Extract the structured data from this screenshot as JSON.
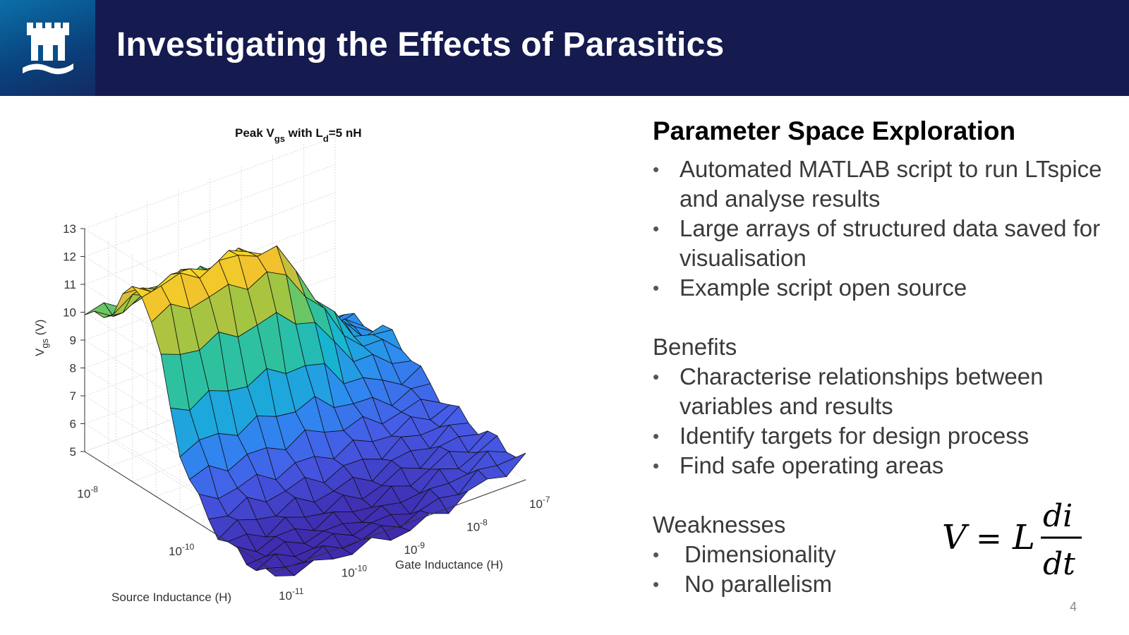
{
  "header": {
    "title": "Investigating the Effects of Parasitics"
  },
  "chart_data": {
    "type": "surface",
    "title": "Peak V",
    "title_sub1": "gs",
    "title_mid": " with L",
    "title_sub2": "d",
    "title_end": "=5 nH",
    "zlabel_main": "V",
    "zlabel_sub": "gs",
    "zlabel_unit": " (V)",
    "xlabel": "Gate Inductance (H)",
    "ylabel": "Source Inductance (H)",
    "zlim": [
      5,
      13
    ],
    "z_ticks": [
      "5",
      "6",
      "7",
      "8",
      "9",
      "10",
      "11",
      "12",
      "13"
    ],
    "x_ticks": [
      {
        "base": "10",
        "exp": "-11"
      },
      {
        "base": "10",
        "exp": "-10"
      },
      {
        "base": "10",
        "exp": "-9"
      },
      {
        "base": "10",
        "exp": "-8"
      },
      {
        "base": "10",
        "exp": "-7"
      }
    ],
    "y_ticks": [
      {
        "base": "10",
        "exp": "-8"
      },
      {
        "base": "10",
        "exp": "-10"
      }
    ],
    "x_log_range": [
      -11,
      -7
    ],
    "y_log_range": [
      -11,
      -7
    ],
    "grid": true,
    "colormap": "parula",
    "surface_levels_by_row": [
      9.9,
      10.0,
      10.3,
      10.8,
      11.4,
      11.8,
      12.0,
      11.3,
      10.0,
      8.4,
      7.2,
      6.4,
      5.8,
      5.4,
      5.1,
      4.9,
      4.8,
      4.7,
      4.7,
      4.7,
      4.7
    ],
    "surface_levels_by_col": [
      1.0,
      1.0,
      1.0,
      1.0,
      1.0,
      1.0,
      1.0,
      0.95,
      0.82,
      0.62,
      0.45,
      0.33,
      0.25,
      0.2
    ]
  },
  "right": {
    "section1_title": "Parameter Space Exploration",
    "bullets1": [
      "Automated MATLAB script to run LTspice and analyse results",
      "Large arrays of structured data saved for visualisation",
      "Example script open source"
    ],
    "benefits_title": "Benefits",
    "benefits": [
      "Characterise relationships between variables and results",
      "Identify targets for design process",
      "Find safe operating areas"
    ],
    "weaknesses_title": "Weaknesses",
    "weaknesses": [
      "Dimensionality",
      "No parallelism"
    ]
  },
  "formula": {
    "lhs": "V",
    "eq": "=",
    "coef": "L",
    "num": "di",
    "den": "dt"
  },
  "page_number": "4",
  "colors": {
    "header_bg": "#151a4f",
    "logo_bg": "#0a4f8a"
  }
}
